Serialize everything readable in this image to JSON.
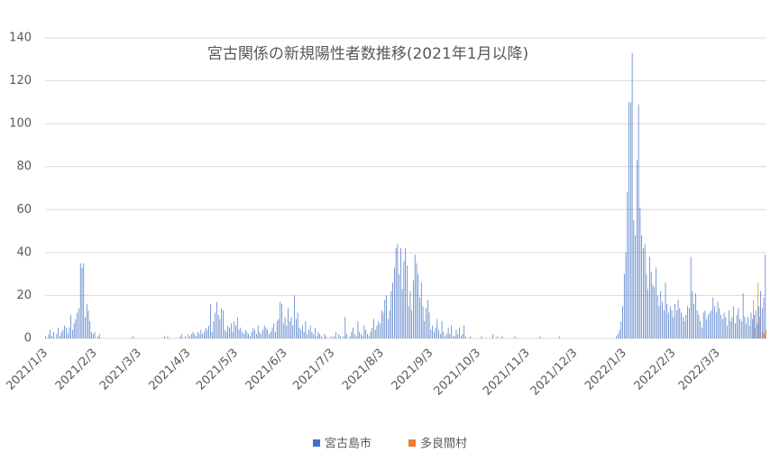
{
  "chart_data": {
    "type": "bar",
    "title": "宮古関係の新規陽性者数推移(2021年1月以降)",
    "categories": [
      "2021/1/3",
      null,
      null,
      null,
      null,
      null,
      null,
      null,
      null,
      null,
      null,
      null,
      null,
      null,
      null,
      null,
      null,
      null,
      null,
      null,
      null,
      null,
      null,
      null,
      null,
      null,
      null,
      null,
      null,
      null,
      null,
      "2021/2/3",
      null,
      null,
      null,
      null,
      null,
      null,
      null,
      null,
      null,
      null,
      null,
      null,
      null,
      null,
      null,
      null,
      null,
      null,
      null,
      null,
      null,
      null,
      null,
      null,
      null,
      null,
      null,
      "2021/3/3",
      null,
      null,
      null,
      null,
      null,
      null,
      null,
      null,
      null,
      null,
      null,
      null,
      null,
      null,
      null,
      null,
      null,
      null,
      null,
      null,
      null,
      null,
      null,
      null,
      null,
      null,
      null,
      null,
      null,
      null,
      "2021/4/3",
      null,
      null,
      null,
      null,
      null,
      null,
      null,
      null,
      null,
      null,
      null,
      null,
      null,
      null,
      null,
      null,
      null,
      null,
      null,
      null,
      null,
      null,
      null,
      null,
      null,
      null,
      null,
      null,
      null,
      "2021/5/3",
      null,
      null,
      null,
      null,
      null,
      null,
      null,
      null,
      null,
      null,
      null,
      null,
      null,
      null,
      null,
      null,
      null,
      null,
      null,
      null,
      null,
      null,
      null,
      null,
      null,
      null,
      null,
      null,
      null,
      null,
      "2021/6/3",
      null,
      null,
      null,
      null,
      null,
      null,
      null,
      null,
      null,
      null,
      null,
      null,
      null,
      null,
      null,
      null,
      null,
      null,
      null,
      null,
      null,
      null,
      null,
      null,
      null,
      null,
      null,
      null,
      null,
      "2021/7/3",
      null,
      null,
      null,
      null,
      null,
      null,
      null,
      null,
      null,
      null,
      null,
      null,
      null,
      null,
      null,
      null,
      null,
      null,
      null,
      null,
      null,
      null,
      null,
      null,
      null,
      null,
      null,
      null,
      null,
      null,
      "2021/8/3",
      null,
      null,
      null,
      null,
      null,
      null,
      null,
      null,
      null,
      null,
      null,
      null,
      null,
      null,
      null,
      null,
      null,
      null,
      null,
      null,
      null,
      null,
      null,
      null,
      null,
      null,
      null,
      null,
      null,
      null,
      "2021/9/3",
      null,
      null,
      null,
      null,
      null,
      null,
      null,
      null,
      null,
      null,
      null,
      null,
      null,
      null,
      null,
      null,
      null,
      null,
      null,
      null,
      null,
      null,
      null,
      null,
      null,
      null,
      null,
      null,
      null,
      "2021/10/3",
      null,
      null,
      null,
      null,
      null,
      null,
      null,
      null,
      null,
      null,
      null,
      null,
      null,
      null,
      null,
      null,
      null,
      null,
      null,
      null,
      null,
      null,
      null,
      null,
      null,
      null,
      null,
      null,
      null,
      null,
      "2021/11/3",
      null,
      null,
      null,
      null,
      null,
      null,
      null,
      null,
      null,
      null,
      null,
      null,
      null,
      null,
      null,
      null,
      null,
      null,
      null,
      null,
      null,
      null,
      null,
      null,
      null,
      null,
      null,
      null,
      null,
      "2021/12/3",
      null,
      null,
      null,
      null,
      null,
      null,
      null,
      null,
      null,
      null,
      null,
      null,
      null,
      null,
      null,
      null,
      null,
      null,
      null,
      null,
      null,
      null,
      null,
      null,
      null,
      null,
      null,
      null,
      null,
      null,
      "2022/1/3",
      null,
      null,
      null,
      null,
      null,
      null,
      null,
      null,
      null,
      null,
      null,
      null,
      null,
      null,
      null,
      null,
      null,
      null,
      null,
      null,
      null,
      null,
      null,
      null,
      null,
      null,
      null,
      null,
      null,
      null,
      "2022/2/3",
      null,
      null,
      null,
      null,
      null,
      null,
      null,
      null,
      null,
      null,
      null,
      null,
      null,
      null,
      null,
      null,
      null,
      null,
      null,
      null,
      null,
      null,
      null,
      null,
      null,
      null,
      null,
      "2022/3/3",
      null,
      null,
      null,
      null,
      null,
      null,
      null,
      null,
      null,
      null,
      null,
      null,
      null,
      null,
      null,
      null,
      null,
      null,
      null,
      null,
      null,
      null,
      null,
      null,
      null,
      null,
      null,
      null,
      null,
      null
    ],
    "series": [
      {
        "name": "宮古島市",
        "color": "#4472c4",
        "values": [
          1,
          0,
          2,
          4,
          1,
          3,
          0,
          2,
          5,
          1,
          3,
          4,
          6,
          5,
          2,
          5,
          11,
          4,
          7,
          9,
          12,
          14,
          35,
          33,
          35,
          10,
          16,
          13,
          8,
          3,
          2,
          3,
          0,
          1,
          2,
          0,
          0,
          0,
          0,
          0,
          0,
          0,
          0,
          0,
          0,
          0,
          0,
          0,
          0,
          0,
          0,
          0,
          0,
          0,
          0,
          1,
          0,
          0,
          0,
          0,
          0,
          0,
          0,
          0,
          0,
          0,
          0,
          0,
          0,
          0,
          0,
          0,
          0,
          0,
          0,
          1,
          0,
          1,
          0,
          0,
          0,
          0,
          0,
          0,
          0,
          1,
          2,
          0,
          1,
          0,
          2,
          1,
          2,
          3,
          2,
          1,
          3,
          2,
          4,
          2,
          3,
          5,
          4,
          6,
          16,
          3,
          8,
          12,
          17,
          11,
          9,
          14,
          13,
          4,
          3,
          6,
          5,
          7,
          3,
          8,
          6,
          10,
          4,
          5,
          3,
          2,
          4,
          3,
          2,
          1,
          3,
          5,
          4,
          2,
          6,
          3,
          2,
          4,
          6,
          5,
          4,
          2,
          3,
          5,
          7,
          3,
          8,
          9,
          17,
          16,
          7,
          10,
          6,
          14,
          8,
          10,
          6,
          20,
          9,
          12,
          5,
          4,
          6,
          3,
          8,
          2,
          4,
          6,
          3,
          2,
          5,
          1,
          3,
          2,
          1,
          0,
          2,
          1,
          0,
          0,
          1,
          0,
          1,
          3,
          0,
          2,
          1,
          0,
          1,
          10,
          2,
          0,
          1,
          3,
          5,
          2,
          1,
          8,
          3,
          2,
          1,
          6,
          4,
          2,
          1,
          3,
          5,
          9,
          4,
          6,
          8,
          7,
          13,
          12,
          18,
          20,
          9,
          13,
          22,
          26,
          33,
          42,
          44,
          30,
          42,
          23,
          36,
          42,
          34,
          15,
          22,
          13,
          27,
          39,
          35,
          30,
          19,
          26,
          15,
          8,
          14,
          18,
          12,
          4,
          6,
          3,
          5,
          9,
          4,
          2,
          8,
          3,
          1,
          2,
          5,
          2,
          6,
          1,
          1,
          4,
          2,
          5,
          1,
          2,
          6,
          1,
          0,
          0,
          1,
          0,
          0,
          0,
          0,
          0,
          0,
          1,
          0,
          0,
          0,
          0,
          0,
          0,
          2,
          0,
          0,
          1,
          0,
          0,
          1,
          0,
          0,
          0,
          0,
          0,
          0,
          0,
          1,
          0,
          0,
          0,
          0,
          0,
          0,
          0,
          0,
          0,
          0,
          0,
          0,
          0,
          0,
          0,
          1,
          0,
          0,
          0,
          0,
          0,
          0,
          0,
          0,
          0,
          0,
          0,
          1,
          0,
          0,
          0,
          0,
          0,
          0,
          0,
          0,
          0,
          0,
          0,
          0,
          0,
          0,
          0,
          0,
          0,
          0,
          0,
          0,
          0,
          0,
          0,
          0,
          0,
          0,
          0,
          0,
          0,
          0,
          0,
          0,
          0,
          0,
          0,
          1,
          2,
          4,
          8,
          15,
          30,
          40,
          68,
          110,
          110,
          133,
          55,
          48,
          83,
          109,
          61,
          48,
          42,
          44,
          30,
          23,
          38,
          31,
          25,
          24,
          33,
          20,
          15,
          22,
          17,
          13,
          26,
          16,
          12,
          15,
          13,
          10,
          16,
          13,
          18,
          14,
          12,
          10,
          8,
          11,
          15,
          14,
          38,
          22,
          16,
          21,
          13,
          11,
          8,
          5,
          12,
          13,
          9,
          11,
          12,
          13,
          19,
          15,
          12,
          17,
          14,
          11,
          9,
          12,
          10,
          6,
          13,
          8,
          10,
          15,
          7,
          11,
          14,
          9,
          8,
          21,
          10,
          7,
          10,
          6,
          12,
          9,
          11,
          13,
          7,
          15,
          22,
          14,
          19,
          39
        ]
      },
      {
        "name": "多良間村",
        "color": "#ed7d31",
        "values": [
          0,
          0,
          0,
          0,
          0,
          0,
          0,
          0,
          0,
          0,
          0,
          0,
          0,
          0,
          0,
          0,
          0,
          0,
          0,
          0,
          0,
          0,
          0,
          0,
          0,
          0,
          0,
          0,
          0,
          0,
          0,
          0,
          0,
          0,
          0,
          0,
          0,
          0,
          0,
          0,
          0,
          0,
          0,
          0,
          0,
          0,
          0,
          0,
          0,
          0,
          0,
          0,
          0,
          0,
          0,
          0,
          0,
          0,
          0,
          0,
          0,
          0,
          0,
          0,
          0,
          0,
          0,
          0,
          0,
          0,
          0,
          0,
          0,
          0,
          0,
          0,
          0,
          0,
          0,
          0,
          0,
          0,
          0,
          0,
          0,
          0,
          0,
          0,
          0,
          0,
          0,
          0,
          0,
          0,
          0,
          0,
          0,
          0,
          0,
          0,
          0,
          0,
          0,
          0,
          0,
          0,
          0,
          0,
          0,
          0,
          0,
          0,
          0,
          0,
          0,
          0,
          0,
          0,
          0,
          0,
          0,
          0,
          0,
          0,
          0,
          0,
          0,
          0,
          0,
          0,
          0,
          0,
          0,
          0,
          0,
          0,
          0,
          0,
          0,
          0,
          0,
          0,
          0,
          0,
          0,
          0,
          0,
          0,
          0,
          0,
          0,
          0,
          0,
          0,
          0,
          0,
          0,
          0,
          0,
          0,
          0,
          0,
          0,
          0,
          0,
          0,
          0,
          0,
          0,
          0,
          0,
          0,
          0,
          0,
          0,
          0,
          0,
          0,
          0,
          0,
          0,
          0,
          0,
          0,
          0,
          0,
          0,
          0,
          0,
          0,
          0,
          0,
          0,
          0,
          0,
          0,
          0,
          0,
          0,
          0,
          0,
          0,
          0,
          0,
          0,
          0,
          0,
          0,
          0,
          0,
          0,
          0,
          0,
          0,
          0,
          0,
          0,
          0,
          0,
          0,
          0,
          0,
          0,
          0,
          0,
          0,
          0,
          0,
          0,
          0,
          0,
          0,
          0,
          0,
          0,
          0,
          0,
          0,
          0,
          0,
          0,
          0,
          0,
          0,
          0,
          0,
          0,
          0,
          0,
          0,
          0,
          0,
          0,
          0,
          0,
          0,
          0,
          0,
          0,
          0,
          0,
          0,
          0,
          0,
          0,
          0,
          0,
          0,
          0,
          0,
          0,
          0,
          0,
          0,
          0,
          0,
          0,
          0,
          0,
          0,
          0,
          0,
          0,
          0,
          0,
          0,
          0,
          0,
          0,
          0,
          0,
          0,
          0,
          0,
          0,
          0,
          0,
          0,
          0,
          0,
          0,
          0,
          0,
          0,
          0,
          0,
          0,
          0,
          0,
          0,
          0,
          0,
          0,
          0,
          0,
          0,
          0,
          0,
          0,
          0,
          0,
          0,
          0,
          0,
          0,
          0,
          0,
          0,
          0,
          0,
          0,
          0,
          0,
          0,
          0,
          0,
          0,
          0,
          0,
          0,
          0,
          0,
          0,
          0,
          0,
          0,
          0,
          0,
          0,
          0,
          0,
          0,
          0,
          0,
          0,
          0,
          0,
          0,
          0,
          0,
          0,
          0,
          0,
          0,
          0,
          0,
          0,
          0,
          0,
          0,
          0,
          0,
          0,
          0,
          0,
          0,
          0,
          0,
          0,
          0,
          0,
          0,
          0,
          0,
          0,
          0,
          0,
          0,
          0,
          0,
          0,
          0,
          0,
          0,
          0,
          0,
          0,
          0,
          0,
          0,
          0,
          0,
          0,
          0,
          0,
          0,
          0,
          0,
          0,
          0,
          0,
          0,
          0,
          0,
          0,
          0,
          0,
          0,
          0,
          0,
          0,
          0,
          0,
          0,
          0,
          0,
          0,
          0,
          0,
          0,
          0,
          0,
          0,
          0,
          0,
          0,
          0,
          0,
          0,
          0,
          0,
          0,
          0,
          0,
          0,
          0,
          18,
          5,
          0,
          26,
          10,
          0,
          3,
          2,
          4
        ]
      }
    ],
    "ylim": [
      0,
      140
    ],
    "yticks": [
      0,
      20,
      40,
      60,
      80,
      100,
      120,
      140
    ],
    "grid": true,
    "legend": "bottom"
  }
}
